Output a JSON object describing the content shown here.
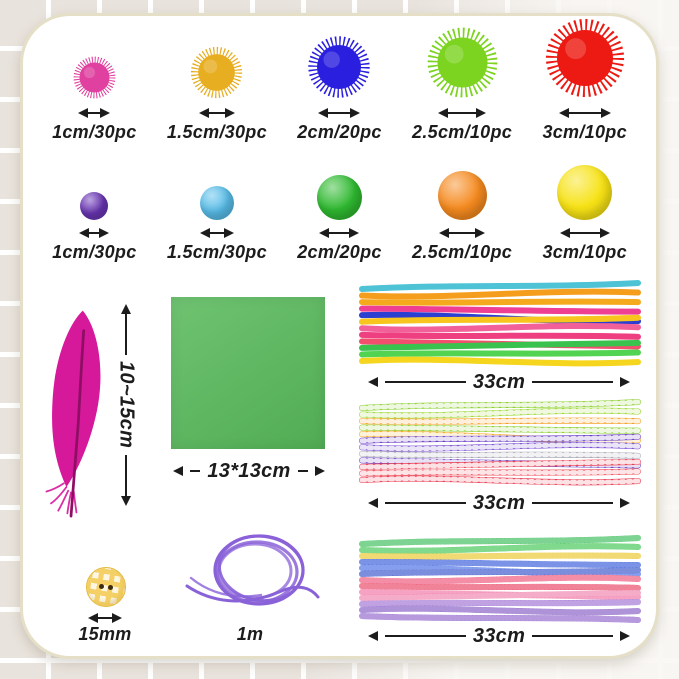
{
  "background": {
    "tile_color": "#e9e3dd",
    "grid_line_color": "#ffffff"
  },
  "card": {
    "background": "#ffffff",
    "border_color": "#e4dfc6"
  },
  "glitter_pom_row": {
    "name": "glitter pom-poms",
    "items": [
      {
        "label": "1cm/30pc",
        "color": "#e0409f"
      },
      {
        "label": "1.5cm/30pc",
        "color": "#e7ae22"
      },
      {
        "label": "2cm/20pc",
        "color": "#2a1fdf"
      },
      {
        "label": "2.5cm/10pc",
        "color": "#7cd320"
      },
      {
        "label": "3cm/10pc",
        "color": "#ec1a12"
      }
    ]
  },
  "plain_pom_row": {
    "name": "plain pom-poms",
    "items": [
      {
        "label": "1cm/30pc",
        "color": "#6a36b5"
      },
      {
        "label": "1.5cm/30pc",
        "color": "#58bde9"
      },
      {
        "label": "2cm/20pc",
        "color": "#2fb930"
      },
      {
        "label": "2.5cm/10pc",
        "color": "#f58a1f"
      },
      {
        "label": "3cm/10pc",
        "color": "#f7e215"
      }
    ]
  },
  "feather": {
    "label": "10~15cm",
    "color": "#d6189b",
    "shaft_color": "#8e0e63"
  },
  "paper": {
    "label": "13*13cm",
    "color": "#57b95a"
  },
  "bundles": [
    {
      "label": "33cm",
      "texture": "smooth",
      "colors": [
        "#4ec3d6",
        "#f59d1d",
        "#f5a91d",
        "#ee3f93",
        "#2b3fd0",
        "#f7c51e",
        "#f2609a",
        "#ee3f80",
        "#f24f6e",
        "#39c24e",
        "#52d452",
        "#f5d51e"
      ]
    },
    {
      "label": "33cm",
      "texture": "striped",
      "colors": [
        "#8ccf2e",
        "#9ad832",
        "#f59d1d",
        "#8ccf2e",
        "#f5a91d",
        "#6a40c2",
        "#7b50d2",
        "#a9a9b5",
        "#6a40c2",
        "#e83a50",
        "#ef5560",
        "#e83a50"
      ]
    },
    {
      "label": "33cm",
      "texture": "glitter",
      "colors": [
        "#2eb84e",
        "#35c247",
        "#e8c31d",
        "#2b52d8",
        "#3a63e2",
        "#2b47c8",
        "#ee4a70",
        "#e8385a",
        "#f06a9e",
        "#ef7aa8",
        "#9a6ad2",
        "#7e52c2",
        "#8a5cc8"
      ]
    }
  ],
  "button": {
    "label": "15mm",
    "color": "#f0c132",
    "holes": 2
  },
  "cord": {
    "label": "1m",
    "color": "#8a62d8"
  }
}
